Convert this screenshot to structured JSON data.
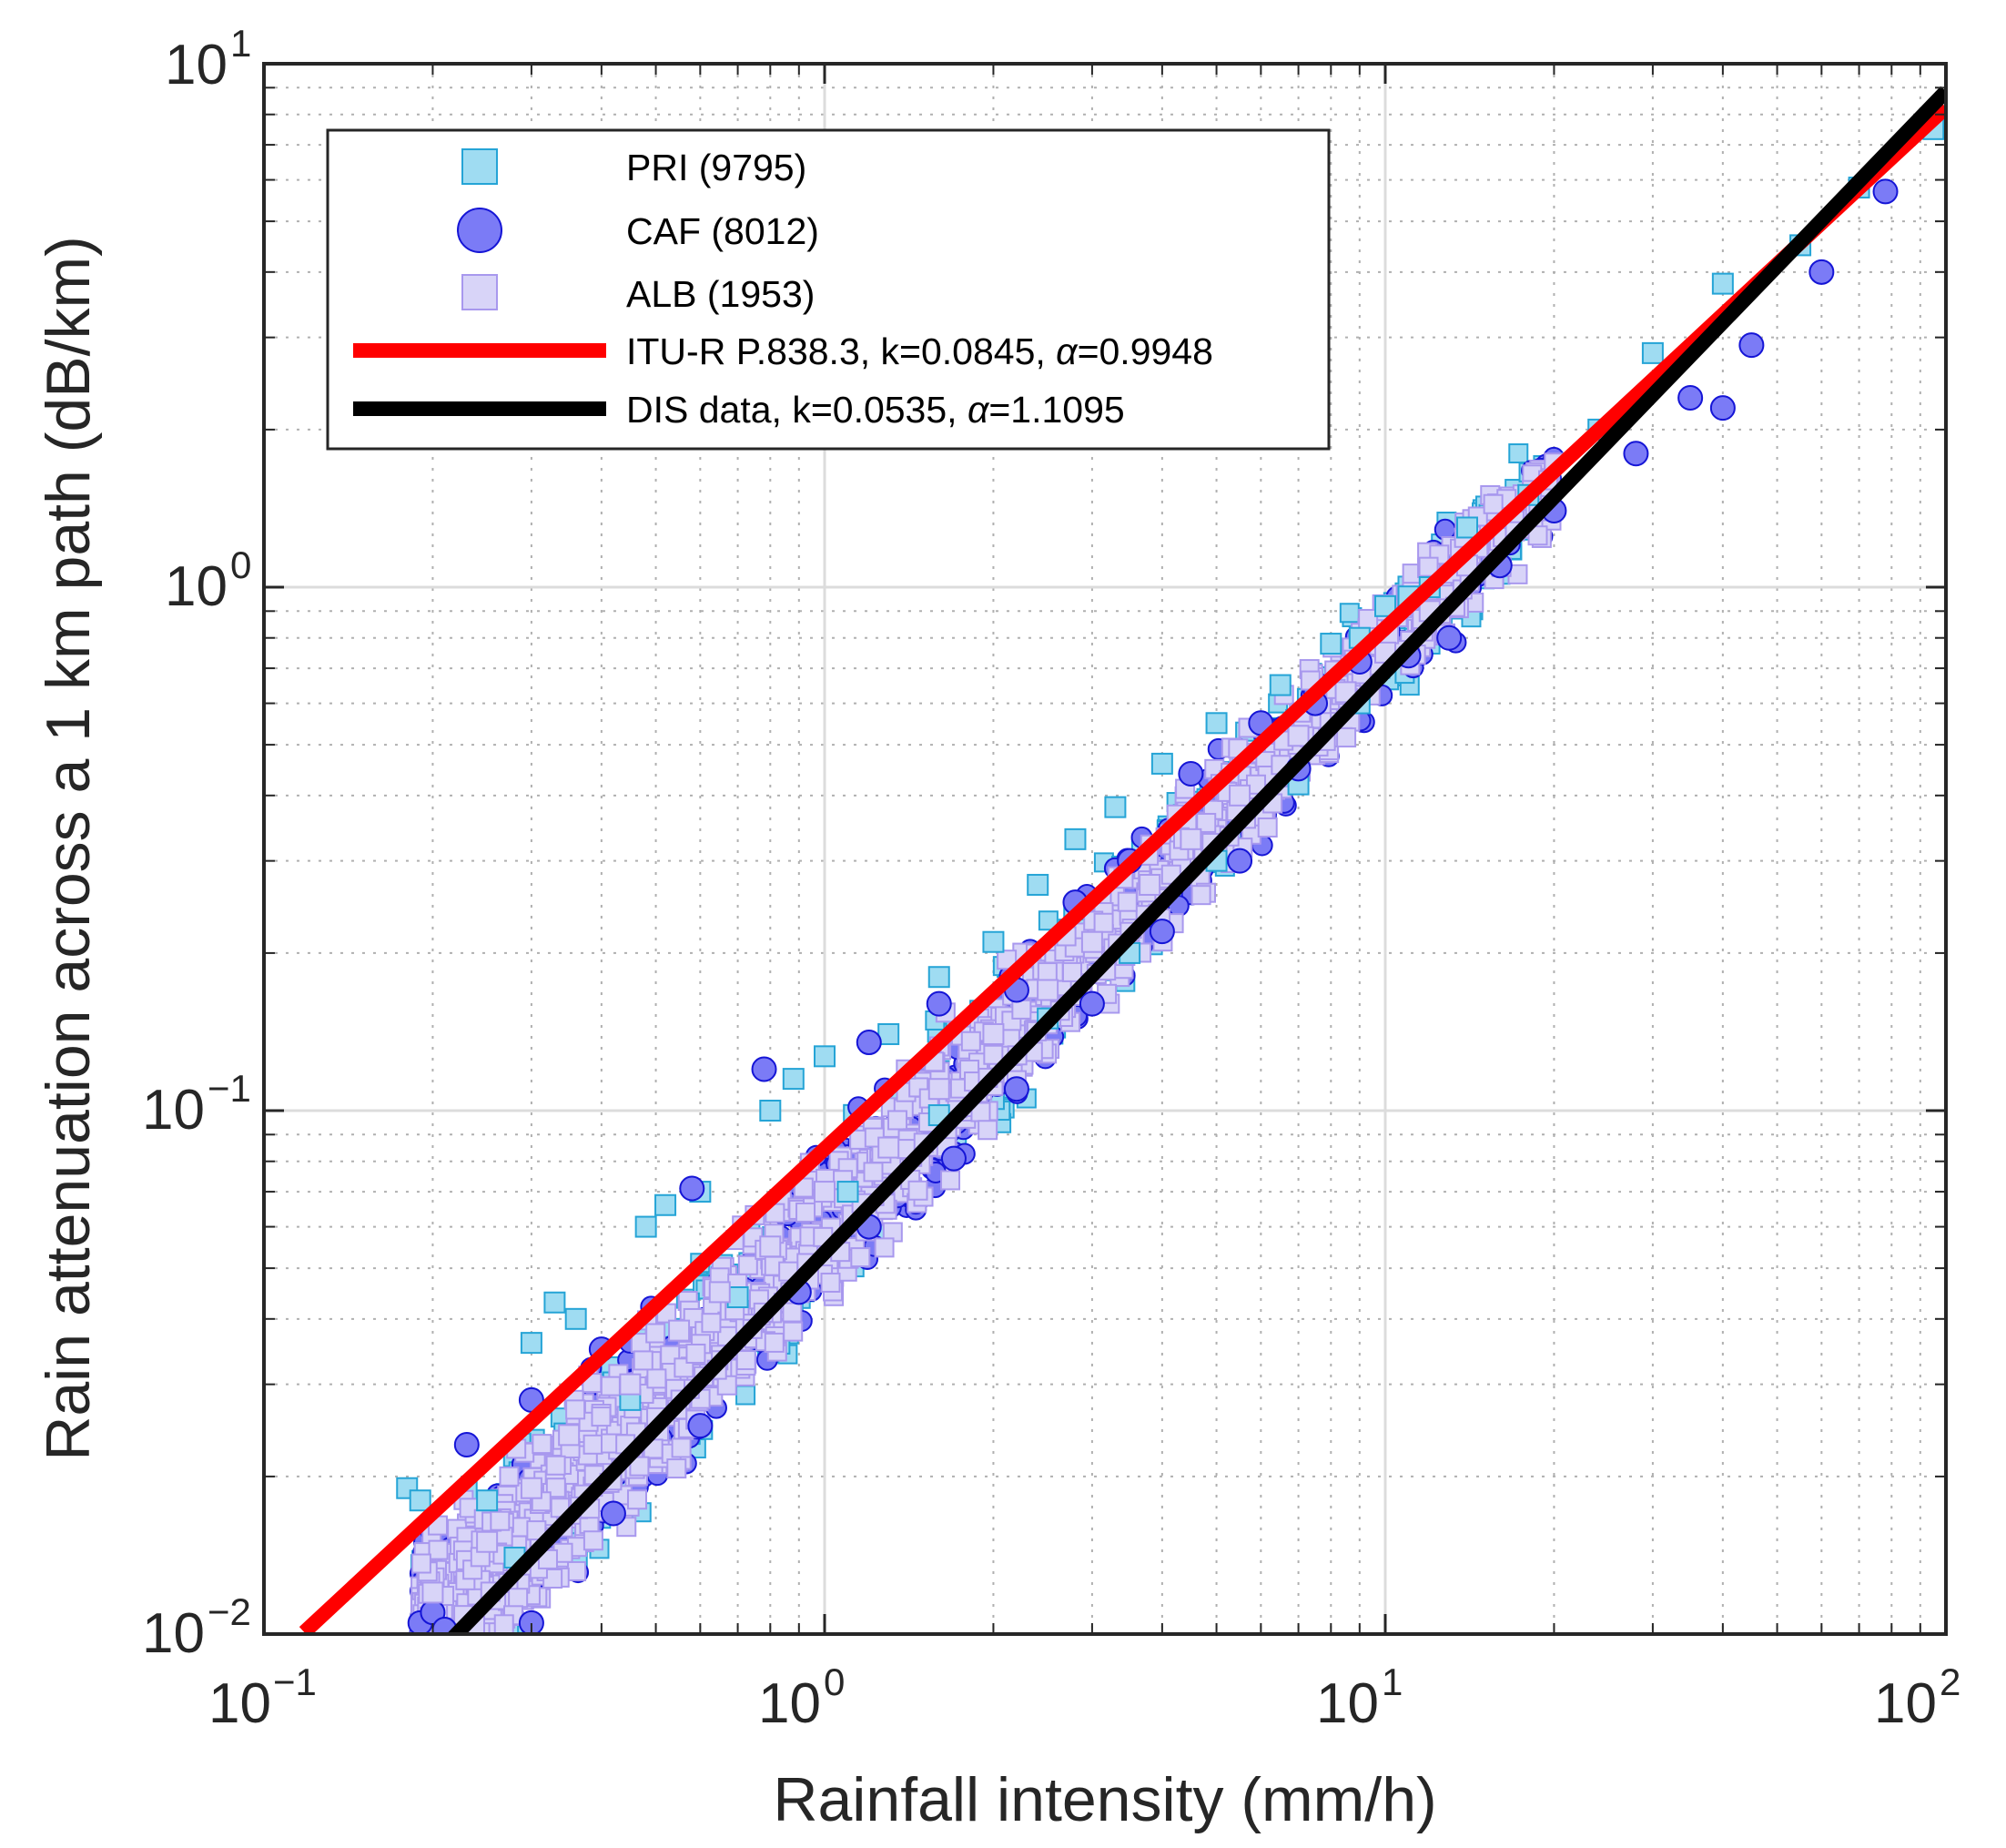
{
  "chart_data": {
    "type": "scatter",
    "title": "",
    "xlabel": "Rainfall intensity (mm/h)",
    "ylabel": "Rain attenuation across a 1 km path (dB/km)",
    "xscale": "log",
    "yscale": "log",
    "xlim": [
      0.1,
      100
    ],
    "ylim": [
      0.01,
      10
    ],
    "grid": true,
    "legend_position": "top-left",
    "x_ticks": [
      {
        "base": "10",
        "exp": "−1"
      },
      {
        "base": "10",
        "exp": "0"
      },
      {
        "base": "10",
        "exp": "1"
      },
      {
        "base": "10",
        "exp": "2"
      }
    ],
    "y_ticks": [
      {
        "base": "10",
        "exp": "−2"
      },
      {
        "base": "10",
        "exp": "−1"
      },
      {
        "base": "10",
        "exp": "0"
      },
      {
        "base": "10",
        "exp": "1"
      }
    ],
    "series": [
      {
        "name": "PRI (9795)",
        "marker": "square",
        "color": "#9fdcf2",
        "edge": "#25a4d6",
        "points": [
          [
            0.18,
            0.019
          ],
          [
            0.19,
            0.018
          ],
          [
            0.3,
            0.036
          ],
          [
            0.33,
            0.043
          ],
          [
            0.36,
            0.04
          ],
          [
            0.48,
            0.06
          ],
          [
            0.52,
            0.066
          ],
          [
            0.6,
            0.07
          ],
          [
            0.8,
            0.1
          ],
          [
            0.88,
            0.115
          ],
          [
            1.0,
            0.127
          ],
          [
            1.3,
            0.14
          ],
          [
            1.6,
            0.18
          ],
          [
            2.0,
            0.21
          ],
          [
            2.4,
            0.27
          ],
          [
            2.8,
            0.33
          ],
          [
            3.3,
            0.38
          ],
          [
            4.0,
            0.46
          ],
          [
            5.0,
            0.55
          ],
          [
            6.5,
            0.65
          ],
          [
            8.0,
            0.78
          ],
          [
            9.0,
            0.8
          ],
          [
            10.0,
            0.92
          ],
          [
            11.0,
            0.96
          ],
          [
            12.0,
            1.0
          ],
          [
            14.0,
            1.3
          ],
          [
            18.0,
            1.5
          ],
          [
            24.0,
            2.0
          ],
          [
            30.0,
            2.8
          ],
          [
            40.0,
            3.8
          ],
          [
            55.0,
            4.5
          ],
          [
            70.0,
            5.8
          ],
          [
            95.0,
            7.5
          ],
          [
            0.25,
            0.018
          ],
          [
            0.28,
            0.014
          ],
          [
            0.45,
            0.028
          ],
          [
            0.7,
            0.044
          ],
          [
            1.1,
            0.07
          ],
          [
            1.6,
            0.098
          ],
          [
            2.5,
            0.15
          ],
          [
            3.5,
            0.2
          ],
          [
            5.0,
            0.3
          ],
          [
            7.0,
            0.42
          ],
          [
            9.0,
            0.6
          ]
        ]
      },
      {
        "name": "CAF (8012)",
        "marker": "circle",
        "color": "#7b7bf6",
        "edge": "#1515d6",
        "points": [
          [
            0.19,
            0.0105
          ],
          [
            0.2,
            0.011
          ],
          [
            0.23,
            0.023
          ],
          [
            0.3,
            0.028
          ],
          [
            0.4,
            0.035
          ],
          [
            0.58,
            0.071
          ],
          [
            0.78,
            0.12
          ],
          [
            1.2,
            0.135
          ],
          [
            1.6,
            0.16
          ],
          [
            2.2,
            0.17
          ],
          [
            2.8,
            0.25
          ],
          [
            3.5,
            0.3
          ],
          [
            4.5,
            0.44
          ],
          [
            6.0,
            0.55
          ],
          [
            7.5,
            0.6
          ],
          [
            9.0,
            0.72
          ],
          [
            11.0,
            0.74
          ],
          [
            13.0,
            0.8
          ],
          [
            16.0,
            1.1
          ],
          [
            20.0,
            1.4
          ],
          [
            28.0,
            1.8
          ],
          [
            35.0,
            2.3
          ],
          [
            40.0,
            2.2
          ],
          [
            45.0,
            2.9
          ],
          [
            60.0,
            4.0
          ],
          [
            78.0,
            5.7
          ],
          [
            0.21,
            0.0102
          ],
          [
            0.3,
            0.0105
          ],
          [
            0.42,
            0.017
          ],
          [
            0.6,
            0.025
          ],
          [
            0.9,
            0.045
          ],
          [
            1.2,
            0.06
          ],
          [
            1.7,
            0.081
          ],
          [
            2.2,
            0.11
          ],
          [
            3.0,
            0.16
          ],
          [
            4.0,
            0.22
          ],
          [
            5.5,
            0.3
          ],
          [
            7.0,
            0.45
          ]
        ]
      },
      {
        "name": "ALB (1953)",
        "marker": "square",
        "color": "#d8d4f8",
        "edge": "#a898ee",
        "points": [
          [
            0.2,
            0.012
          ],
          [
            0.25,
            0.015
          ],
          [
            0.3,
            0.019
          ],
          [
            0.35,
            0.024
          ],
          [
            0.45,
            0.03
          ],
          [
            0.55,
            0.038
          ],
          [
            0.65,
            0.045
          ],
          [
            0.8,
            0.055
          ],
          [
            1.0,
            0.07
          ],
          [
            1.3,
            0.085
          ],
          [
            1.6,
            0.11
          ],
          [
            2.0,
            0.14
          ],
          [
            2.5,
            0.17
          ],
          [
            3.0,
            0.21
          ],
          [
            3.8,
            0.27
          ],
          [
            4.5,
            0.33
          ],
          [
            5.5,
            0.4
          ],
          [
            7.0,
            0.52
          ],
          [
            8.5,
            0.63
          ],
          [
            10.0,
            0.75
          ],
          [
            12.0,
            0.9
          ],
          [
            14.0,
            1.1
          ]
        ]
      }
    ],
    "lines": [
      {
        "name": "ITU-R P.838.3, k=0.0845, α=0.9948",
        "label_pre": "ITU-R P.838.3, k=0.0845, ",
        "label_alpha": "α",
        "label_post": "=0.9948",
        "k": 0.0845,
        "alpha": 0.9948,
        "x_range": [
          0.118,
          100
        ],
        "color": "#ff0000"
      },
      {
        "name": "DIS data, k=0.0535, α=1.1095",
        "label_pre": "DIS data, k=0.0535, ",
        "label_alpha": "α",
        "label_post": "=1.1095",
        "k": 0.0535,
        "alpha": 1.1095,
        "x_range": [
          0.215,
          100
        ],
        "color": "#000000"
      }
    ]
  }
}
